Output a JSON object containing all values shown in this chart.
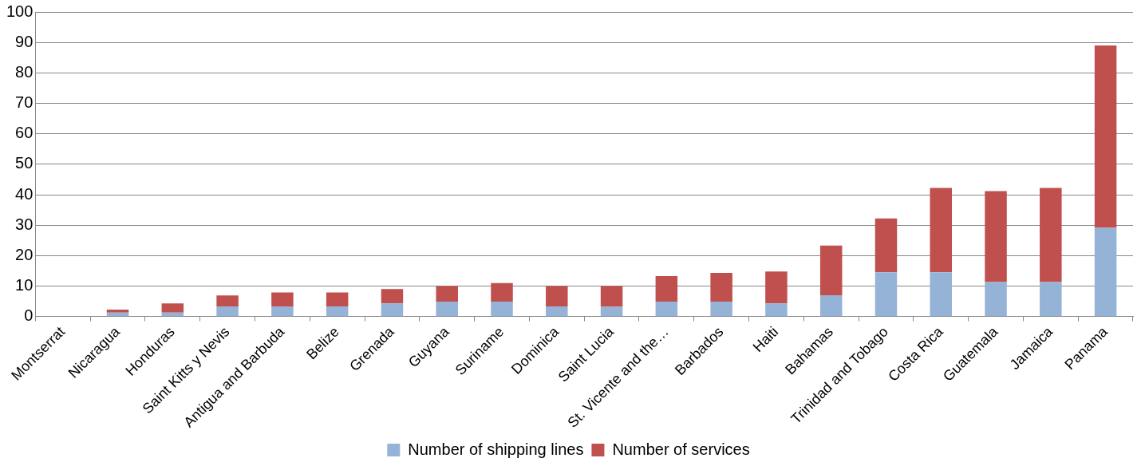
{
  "chart_data": {
    "type": "bar",
    "stacked": true,
    "categories": [
      "Montserrat",
      "Nicaragua",
      "Honduras",
      "Saint Kitts y Nevis",
      "Antigua and Barbuda",
      "Belize",
      "Grenada",
      "Guyana",
      "Suriname",
      "Dominica",
      "Saint Lucia",
      "St. Vicente and the…",
      "Barbados",
      "Haiti",
      "Bahamas",
      "Trinidad and Tobago",
      "Costa Rica",
      "Guatemala",
      "Jamaica",
      "Panama"
    ],
    "series": [
      {
        "name": "Number of shipping lines",
        "color": "#95b3d7",
        "values": [
          0,
          1.3,
          1.3,
          3.3,
          3.3,
          3.3,
          4.3,
          4.9,
          4.9,
          3.3,
          3.2,
          4.9,
          4.9,
          4.3,
          7,
          14.5,
          14.5,
          11.3,
          11.3,
          29.1
        ]
      },
      {
        "name": "Number of services",
        "color": "#c0504d",
        "values": [
          0,
          1,
          3,
          3.6,
          4.6,
          4.6,
          4.7,
          5.1,
          6.1,
          6.7,
          6.8,
          8.4,
          9.4,
          10.5,
          16.3,
          17.7,
          27.7,
          29.9,
          30.9,
          59.9
        ]
      }
    ],
    "ylim": [
      0,
      100
    ],
    "yticks": [
      0,
      10,
      20,
      30,
      40,
      50,
      60,
      70,
      80,
      90,
      100
    ],
    "grid": "y",
    "legend": "bottom"
  }
}
